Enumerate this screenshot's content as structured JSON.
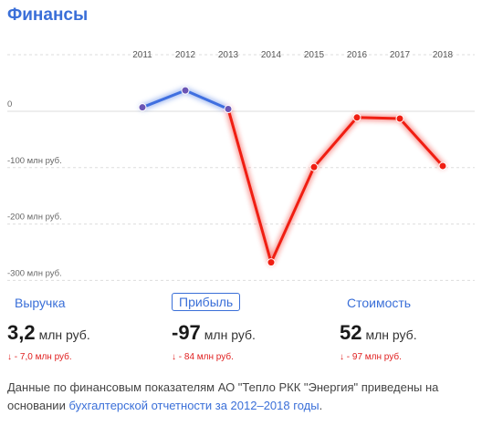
{
  "header": {
    "title": "Финансы"
  },
  "chart_data": {
    "type": "line",
    "categories": [
      "2011",
      "2012",
      "2013",
      "2014",
      "2015",
      "2016",
      "2017",
      "2018"
    ],
    "values": [
      7,
      37,
      4,
      -268,
      -99,
      -11,
      -13,
      -97
    ],
    "ytick_labels": [
      "0",
      "-100 млн руб.",
      "-200 млн руб.",
      "-300 млн руб."
    ],
    "yticks": [
      0,
      -100,
      -200,
      -300
    ],
    "ylim": [
      -310,
      55
    ],
    "grid": true,
    "colors": {
      "positive": "#3f6fe0",
      "negative": "#f01e12",
      "point_fill": "#6a55b5"
    }
  },
  "metrics": [
    {
      "tab": "Выручка",
      "value": "3,2",
      "unit": "млн руб.",
      "delta": "↓ - 7,0 млн руб."
    },
    {
      "tab": "Прибыль",
      "value": "-97",
      "unit": "млн руб.",
      "delta": "↓ - 84 млн руб."
    },
    {
      "tab": "Стоимость",
      "value": "52",
      "unit": "млн руб.",
      "delta": "↓ - 97 млн руб."
    }
  ],
  "footnote": {
    "text": "Данные по финансовым показателям АО \"Тепло РКК \"Энергия\" приведены на основании ",
    "link": "бухгалтерской отчетности за 2012–2018 годы",
    "end": "."
  }
}
